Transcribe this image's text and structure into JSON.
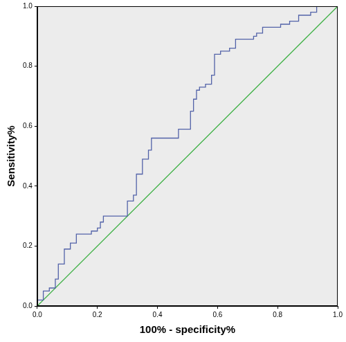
{
  "chart_data": {
    "type": "line",
    "x_label": "100% - specificity%",
    "y_label": "Sensitivity%",
    "xlim": [
      0,
      1
    ],
    "ylim": [
      0,
      1
    ],
    "xticks": [
      {
        "value": 0,
        "label": "0.0"
      },
      0.2,
      0.4,
      0.6,
      0.8,
      {
        "value": 1,
        "label": "1.0"
      }
    ],
    "yticks": [
      {
        "value": 0,
        "label": "0.0"
      },
      0.2,
      0.4,
      0.6,
      0.8,
      {
        "value": 1,
        "label": "1.0"
      }
    ],
    "grid": false,
    "series": [
      {
        "color": "#5262a8",
        "line_style": "solid",
        "x": [
          0,
          0,
          0.02,
          0.02,
          0.04,
          0.04,
          0.06,
          0.06,
          0.07,
          0.07,
          0.09,
          0.09,
          0.11,
          0.11,
          0.13,
          0.13,
          0.18,
          0.18,
          0.2,
          0.2,
          0.21,
          0.21,
          0.22,
          0.22,
          0.3,
          0.3,
          0.32,
          0.32,
          0.33,
          0.33,
          0.35,
          0.35,
          0.37,
          0.37,
          0.38,
          0.38,
          0.47,
          0.47,
          0.51,
          0.51,
          0.52,
          0.52,
          0.53,
          0.53,
          0.54,
          0.54,
          0.56,
          0.56,
          0.58,
          0.58,
          0.59,
          0.59,
          0.61,
          0.61,
          0.64,
          0.64,
          0.66,
          0.66,
          0.72,
          0.72,
          0.73,
          0.73,
          0.75,
          0.75,
          0.81,
          0.81,
          0.84,
          0.84,
          0.87,
          0.87,
          0.91,
          0.91,
          0.93,
          0.93,
          1
        ],
        "values": [
          0,
          0.02,
          0.02,
          0.05,
          0.05,
          0.06,
          0.06,
          0.09,
          0.09,
          0.14,
          0.14,
          0.19,
          0.19,
          0.21,
          0.21,
          0.24,
          0.24,
          0.25,
          0.25,
          0.26,
          0.26,
          0.28,
          0.28,
          0.3,
          0.3,
          0.35,
          0.35,
          0.37,
          0.37,
          0.44,
          0.44,
          0.49,
          0.49,
          0.52,
          0.52,
          0.56,
          0.56,
          0.59,
          0.59,
          0.65,
          0.65,
          0.69,
          0.69,
          0.72,
          0.72,
          0.73,
          0.73,
          0.74,
          0.74,
          0.77,
          0.77,
          0.84,
          0.84,
          0.85,
          0.85,
          0.86,
          0.86,
          0.89,
          0.89,
          0.9,
          0.9,
          0.91,
          0.91,
          0.93,
          0.93,
          0.94,
          0.94,
          0.95,
          0.95,
          0.97,
          0.97,
          0.98,
          0.98,
          1,
          1
        ]
      },
      {
        "color": "#3cb043",
        "line_style": "solid",
        "x": [
          0,
          1
        ],
        "values": [
          0,
          1
        ]
      }
    ]
  }
}
